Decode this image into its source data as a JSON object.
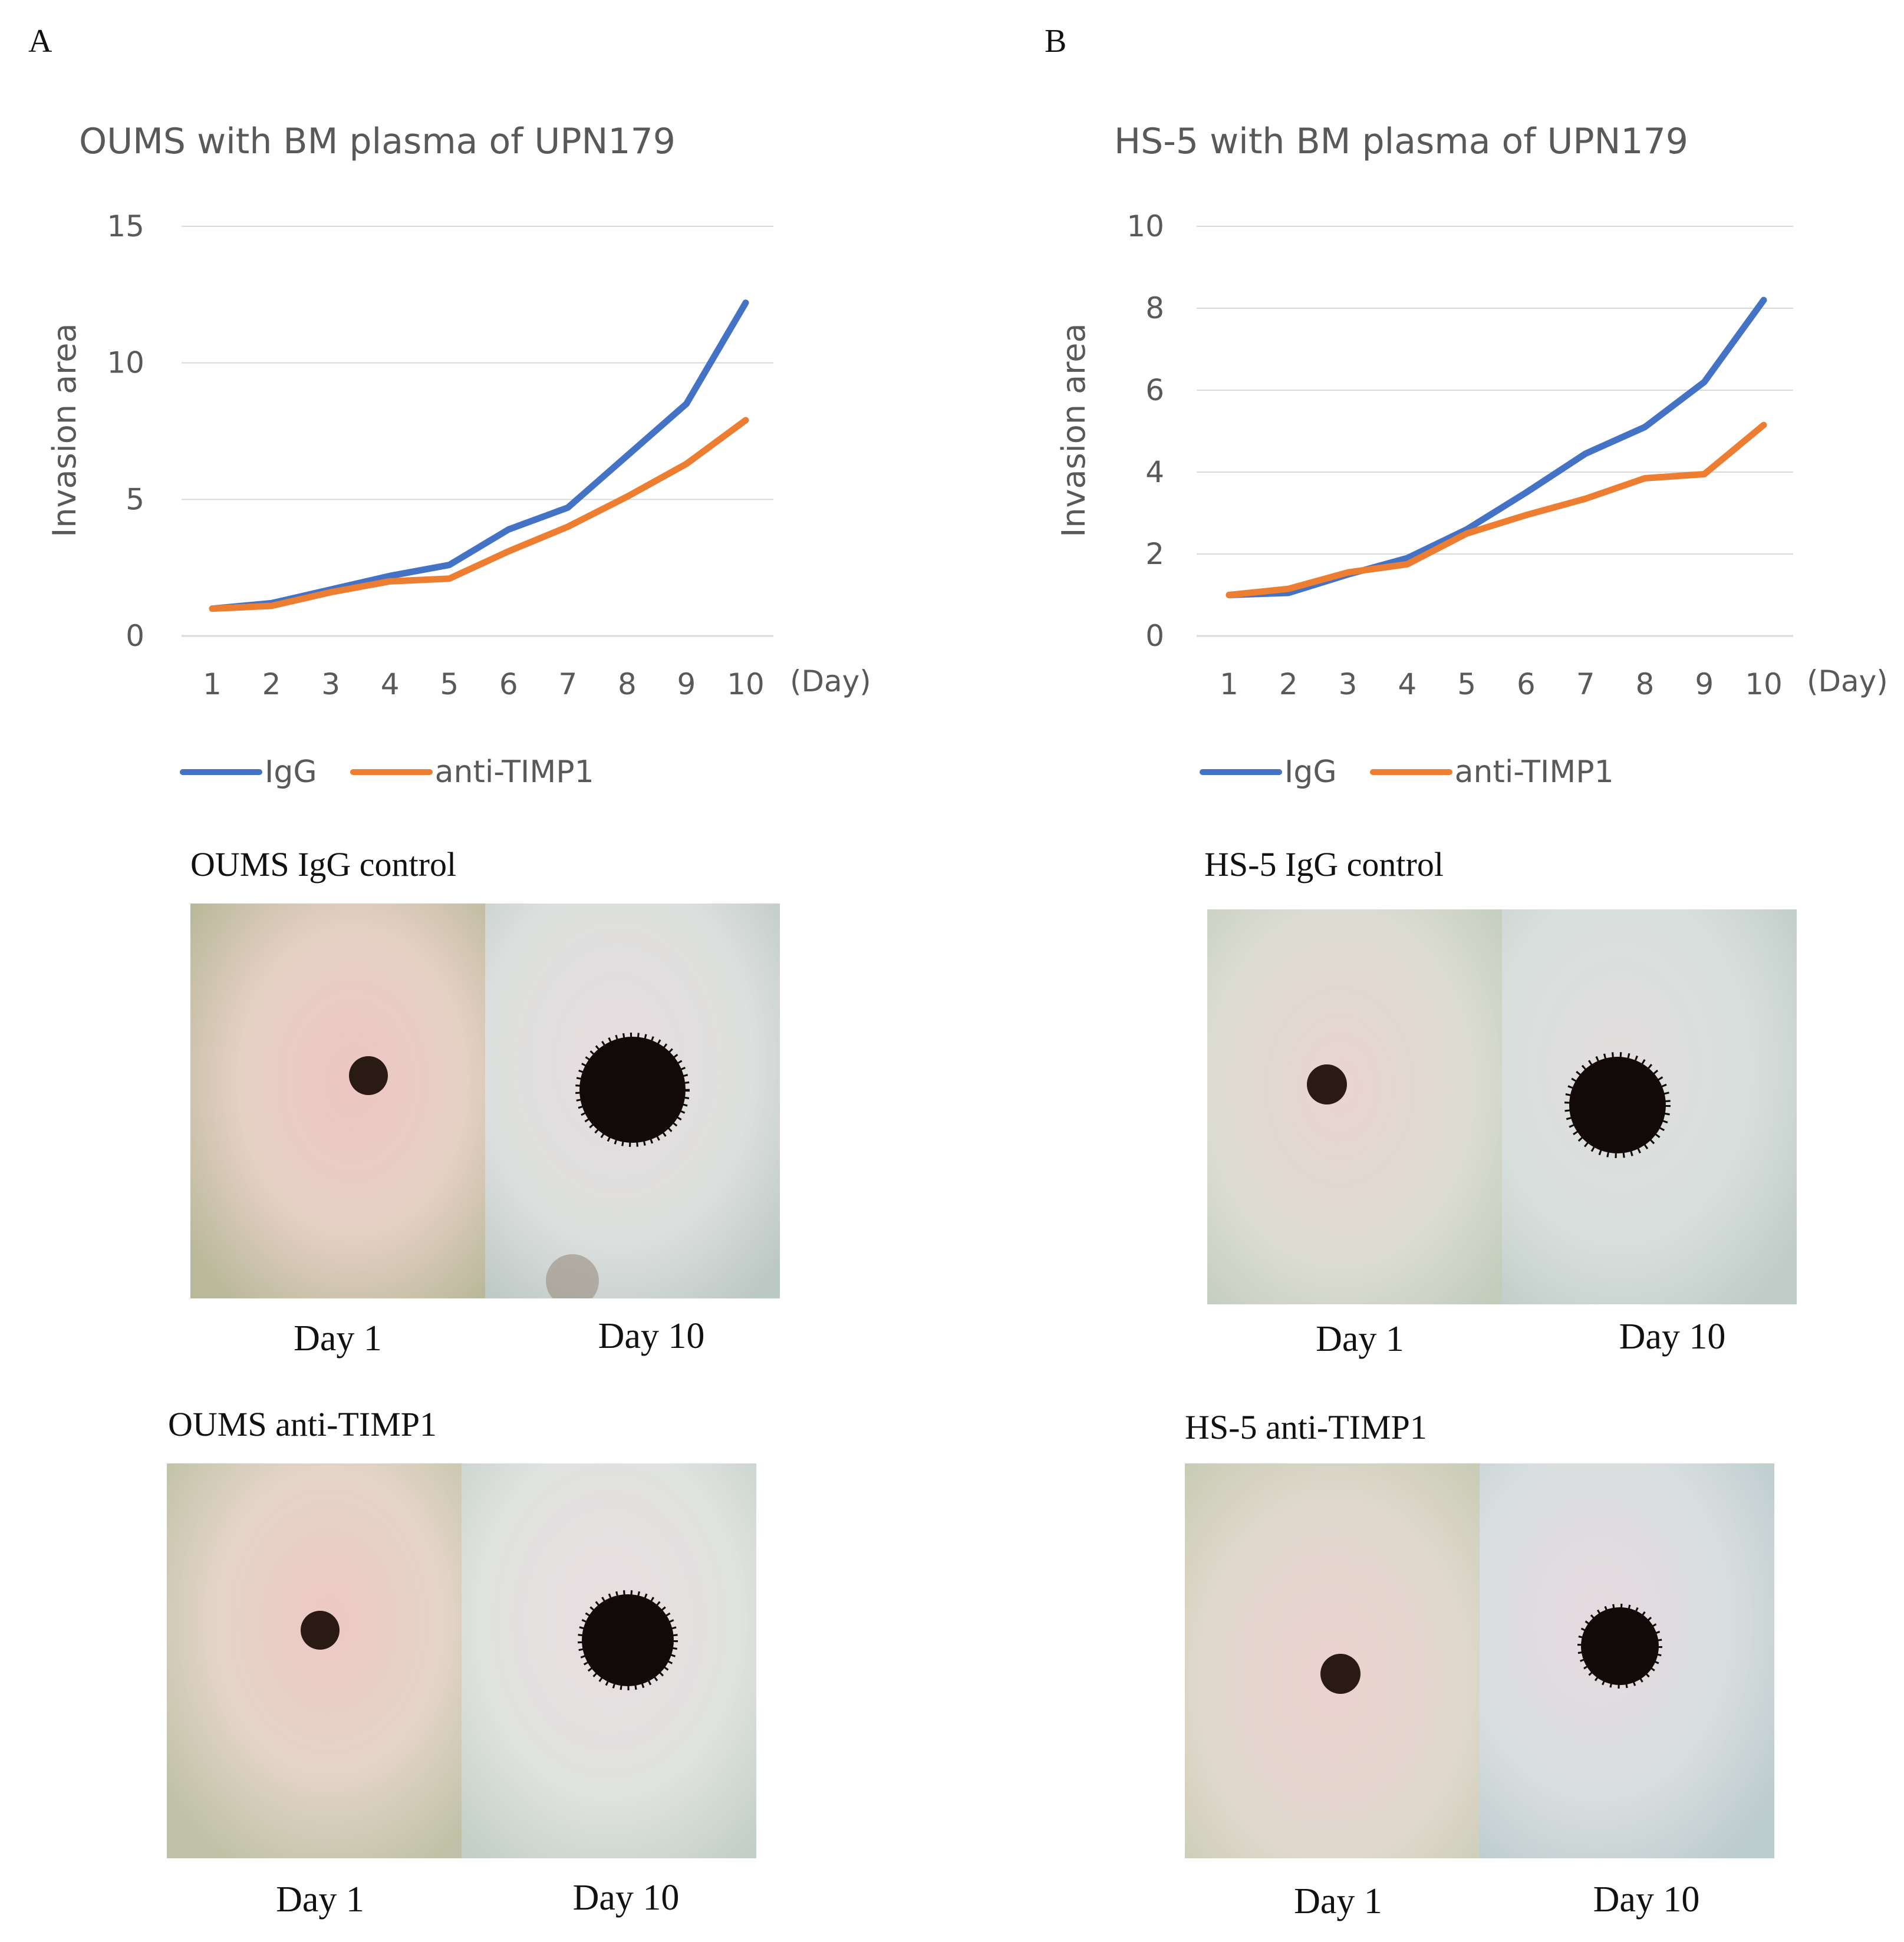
{
  "panels": [
    {
      "letter": "A",
      "photo_sets": [
        {
          "title": "OUMS IgG control",
          "labels": [
            "Day 1",
            "Day 10"
          ]
        },
        {
          "title": "OUMS anti-TIMP1",
          "labels": [
            "Day 1",
            "Day 10"
          ]
        }
      ]
    },
    {
      "letter": "B",
      "photo_sets": [
        {
          "title": "HS-5 IgG control",
          "labels": [
            "Day 1",
            "Day 10"
          ]
        },
        {
          "title": "HS-5 anti-TIMP1",
          "labels": [
            "Day 1",
            "Day 10"
          ]
        }
      ]
    }
  ],
  "colors": {
    "igg": "#4472C4",
    "anti": "#ED7D31",
    "grid": "#d9d9d9",
    "text": "#595959"
  },
  "chart_data": [
    {
      "type": "line",
      "title": "OUMS with BM plasma of UPN179",
      "ylabel": "Invasion area",
      "xlabel": "(Day)",
      "x": [
        1,
        2,
        3,
        4,
        5,
        6,
        7,
        8,
        9,
        10
      ],
      "ylim": [
        0,
        15
      ],
      "yticks": [
        0,
        5,
        10,
        15
      ],
      "grid": true,
      "legend_position": "bottom",
      "series": [
        {
          "name": "IgG",
          "color": "#4472C4",
          "values": [
            1.0,
            1.2,
            1.7,
            2.2,
            2.6,
            3.9,
            4.7,
            6.6,
            8.5,
            12.2
          ]
        },
        {
          "name": "anti-TIMP1",
          "color": "#ED7D31",
          "values": [
            1.0,
            1.1,
            1.6,
            2.0,
            2.1,
            3.1,
            4.0,
            5.1,
            6.3,
            7.9
          ]
        }
      ]
    },
    {
      "type": "line",
      "title": "HS-5 with BM plasma of UPN179",
      "ylabel": "Invasion area",
      "xlabel": "(Day)",
      "x": [
        1,
        2,
        3,
        4,
        5,
        6,
        7,
        8,
        9,
        10
      ],
      "ylim": [
        0,
        10
      ],
      "yticks": [
        0,
        2,
        4,
        6,
        8,
        10
      ],
      "grid": true,
      "legend_position": "bottom",
      "series": [
        {
          "name": "IgG",
          "color": "#4472C4",
          "values": [
            1.0,
            1.05,
            1.5,
            1.9,
            2.6,
            3.5,
            4.45,
            5.1,
            6.2,
            8.2
          ]
        },
        {
          "name": "anti-TIMP1",
          "color": "#ED7D31",
          "values": [
            1.0,
            1.15,
            1.55,
            1.75,
            2.5,
            2.95,
            3.35,
            3.85,
            3.95,
            5.15
          ]
        }
      ]
    }
  ]
}
